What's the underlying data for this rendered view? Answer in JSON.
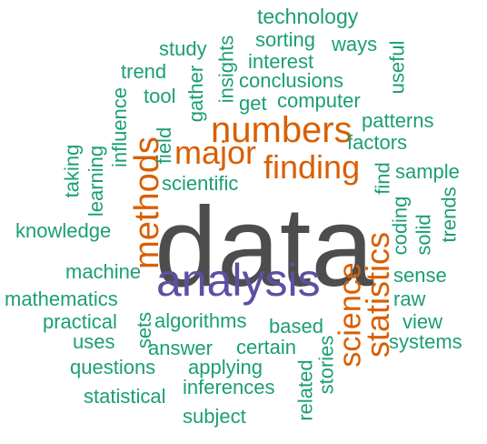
{
  "colors": {
    "dark": "#4d4d4d",
    "purple": "#5e4fa2",
    "orange": "#d95f02",
    "green": "#1b9e77"
  },
  "words": [
    {
      "text": "data",
      "color": "dark"
    },
    {
      "text": "analysis",
      "color": "purple"
    },
    {
      "text": "numbers",
      "color": "orange"
    },
    {
      "text": "major",
      "color": "orange"
    },
    {
      "text": "finding",
      "color": "orange"
    },
    {
      "text": "methods",
      "color": "orange"
    },
    {
      "text": "statistics",
      "color": "orange"
    },
    {
      "text": "science",
      "color": "orange"
    },
    {
      "text": "technology",
      "color": "green"
    },
    {
      "text": "sorting",
      "color": "green"
    },
    {
      "text": "ways",
      "color": "green"
    },
    {
      "text": "study",
      "color": "green"
    },
    {
      "text": "interest",
      "color": "green"
    },
    {
      "text": "insights",
      "color": "green"
    },
    {
      "text": "useful",
      "color": "green"
    },
    {
      "text": "trend",
      "color": "green"
    },
    {
      "text": "conclusions",
      "color": "green"
    },
    {
      "text": "gather",
      "color": "green"
    },
    {
      "text": "tool",
      "color": "green"
    },
    {
      "text": "get",
      "color": "green"
    },
    {
      "text": "computer",
      "color": "green"
    },
    {
      "text": "influence",
      "color": "green"
    },
    {
      "text": "patterns",
      "color": "green"
    },
    {
      "text": "field",
      "color": "green"
    },
    {
      "text": "factors",
      "color": "green"
    },
    {
      "text": "taking",
      "color": "green"
    },
    {
      "text": "learning",
      "color": "green"
    },
    {
      "text": "scientific",
      "color": "green"
    },
    {
      "text": "find",
      "color": "green"
    },
    {
      "text": "sample",
      "color": "green"
    },
    {
      "text": "knowledge",
      "color": "green"
    },
    {
      "text": "coding",
      "color": "green"
    },
    {
      "text": "solid",
      "color": "green"
    },
    {
      "text": "trends",
      "color": "green"
    },
    {
      "text": "machine",
      "color": "green"
    },
    {
      "text": "sense",
      "color": "green"
    },
    {
      "text": "mathematics",
      "color": "green"
    },
    {
      "text": "raw",
      "color": "green"
    },
    {
      "text": "practical",
      "color": "green"
    },
    {
      "text": "sets",
      "color": "green"
    },
    {
      "text": "algorithms",
      "color": "green"
    },
    {
      "text": "based",
      "color": "green"
    },
    {
      "text": "view",
      "color": "green"
    },
    {
      "text": "uses",
      "color": "green"
    },
    {
      "text": "answer",
      "color": "green"
    },
    {
      "text": "certain",
      "color": "green"
    },
    {
      "text": "systems",
      "color": "green"
    },
    {
      "text": "questions",
      "color": "green"
    },
    {
      "text": "applying",
      "color": "green"
    },
    {
      "text": "stories",
      "color": "green"
    },
    {
      "text": "statistical",
      "color": "green"
    },
    {
      "text": "inferences",
      "color": "green"
    },
    {
      "text": "related",
      "color": "green"
    },
    {
      "text": "subject",
      "color": "green"
    }
  ]
}
